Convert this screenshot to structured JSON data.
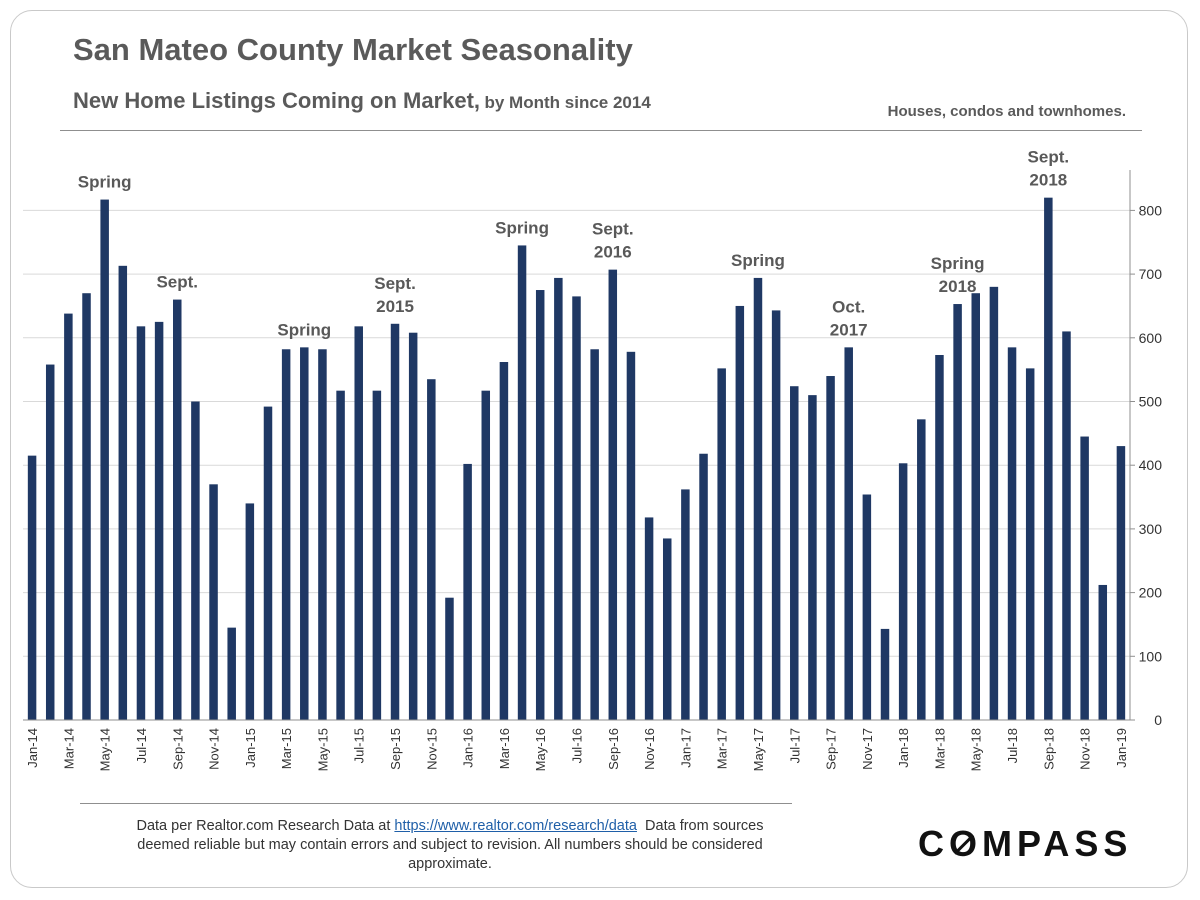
{
  "header": {
    "title": "San Mateo County Market Seasonality",
    "subtitle_main": "New Home Listings Coming on Market,",
    "subtitle_small": "by Month since 2014",
    "note": "Houses, condos and townhomes."
  },
  "footer": {
    "source_prefix": "Data per Realtor.com Research Data at",
    "source_link": "https://www.realtor.com/research/data",
    "source_suffix": "Data from sources deemed reliable but may contain errors and subject to revision.  All numbers should be considered approximate.",
    "logo": "COMPASS"
  },
  "colors": {
    "bar": "#1f3864",
    "grid": "#d9d9d9",
    "text": "#595959"
  },
  "chart_data": {
    "type": "bar",
    "title": "San Mateo County Market Seasonality",
    "ylim": [
      0,
      850
    ],
    "yticks": [
      0,
      100,
      200,
      300,
      400,
      500,
      600,
      700,
      800
    ],
    "y_axis_side": "right",
    "grid": true,
    "categories": [
      "Jan-14",
      "Feb-14",
      "Mar-14",
      "Apr-14",
      "May-14",
      "Jun-14",
      "Jul-14",
      "Aug-14",
      "Sep-14",
      "Oct-14",
      "Nov-14",
      "Dec-14",
      "Jan-15",
      "Feb-15",
      "Mar-15",
      "Apr-15",
      "May-15",
      "Jun-15",
      "Jul-15",
      "Aug-15",
      "Sep-15",
      "Oct-15",
      "Nov-15",
      "Dec-15",
      "Jan-16",
      "Feb-16",
      "Mar-16",
      "Apr-16",
      "May-16",
      "Jun-16",
      "Jul-16",
      "Aug-16",
      "Sep-16",
      "Oct-16",
      "Nov-16",
      "Dec-16",
      "Jan-17",
      "Feb-17",
      "Mar-17",
      "Apr-17",
      "May-17",
      "Jun-17",
      "Jul-17",
      "Aug-17",
      "Sep-17",
      "Oct-17",
      "Nov-17",
      "Dec-17",
      "Jan-18",
      "Feb-18",
      "Mar-18",
      "Apr-18",
      "May-18",
      "Jun-18",
      "Jul-18",
      "Aug-18",
      "Sep-18",
      "Oct-18",
      "Nov-18",
      "Dec-18",
      "Jan-19"
    ],
    "tick_labels": [
      "Jan-14",
      "Mar-14",
      "May-14",
      "Jul-14",
      "Sep-14",
      "Nov-14",
      "Jan-15",
      "Mar-15",
      "May-15",
      "Jul-15",
      "Sep-15",
      "Nov-15",
      "Jan-16",
      "Mar-16",
      "May-16",
      "Jul-16",
      "Sep-16",
      "Nov-16",
      "Jan-17",
      "Mar-17",
      "May-17",
      "Jul-17",
      "Sep-17",
      "Nov-17",
      "Jan-18",
      "Mar-18",
      "May-18",
      "Jul-18",
      "Sep-18",
      "Nov-18",
      "Jan-19"
    ],
    "values": [
      415,
      558,
      638,
      670,
      817,
      713,
      618,
      625,
      660,
      500,
      370,
      145,
      340,
      492,
      582,
      585,
      582,
      517,
      618,
      517,
      622,
      608,
      535,
      192,
      402,
      517,
      562,
      745,
      675,
      694,
      665,
      582,
      707,
      578,
      318,
      285,
      362,
      418,
      552,
      650,
      694,
      643,
      524,
      510,
      540,
      585,
      354,
      143,
      403,
      472,
      573,
      653,
      670,
      680,
      585,
      552,
      820,
      610,
      445,
      212,
      430
    ],
    "annotations": [
      {
        "category": "May-14",
        "lines": [
          "Spring"
        ]
      },
      {
        "category": "Sep-14",
        "lines": [
          "Sept."
        ]
      },
      {
        "category": "Apr-15",
        "lines": [
          "Spring"
        ]
      },
      {
        "category": "Sep-15",
        "lines": [
          "Sept.",
          "2015"
        ]
      },
      {
        "category": "Apr-16",
        "lines": [
          "Spring"
        ]
      },
      {
        "category": "Sep-16",
        "lines": [
          "Sept.",
          "2016"
        ]
      },
      {
        "category": "May-17",
        "lines": [
          "Spring"
        ]
      },
      {
        "category": "Oct-17",
        "lines": [
          "Oct.",
          "2017"
        ]
      },
      {
        "category": "Apr-18",
        "lines": [
          "Spring",
          "2018"
        ]
      },
      {
        "category": "Sep-18",
        "lines": [
          "Sept.",
          "2018"
        ]
      }
    ]
  }
}
